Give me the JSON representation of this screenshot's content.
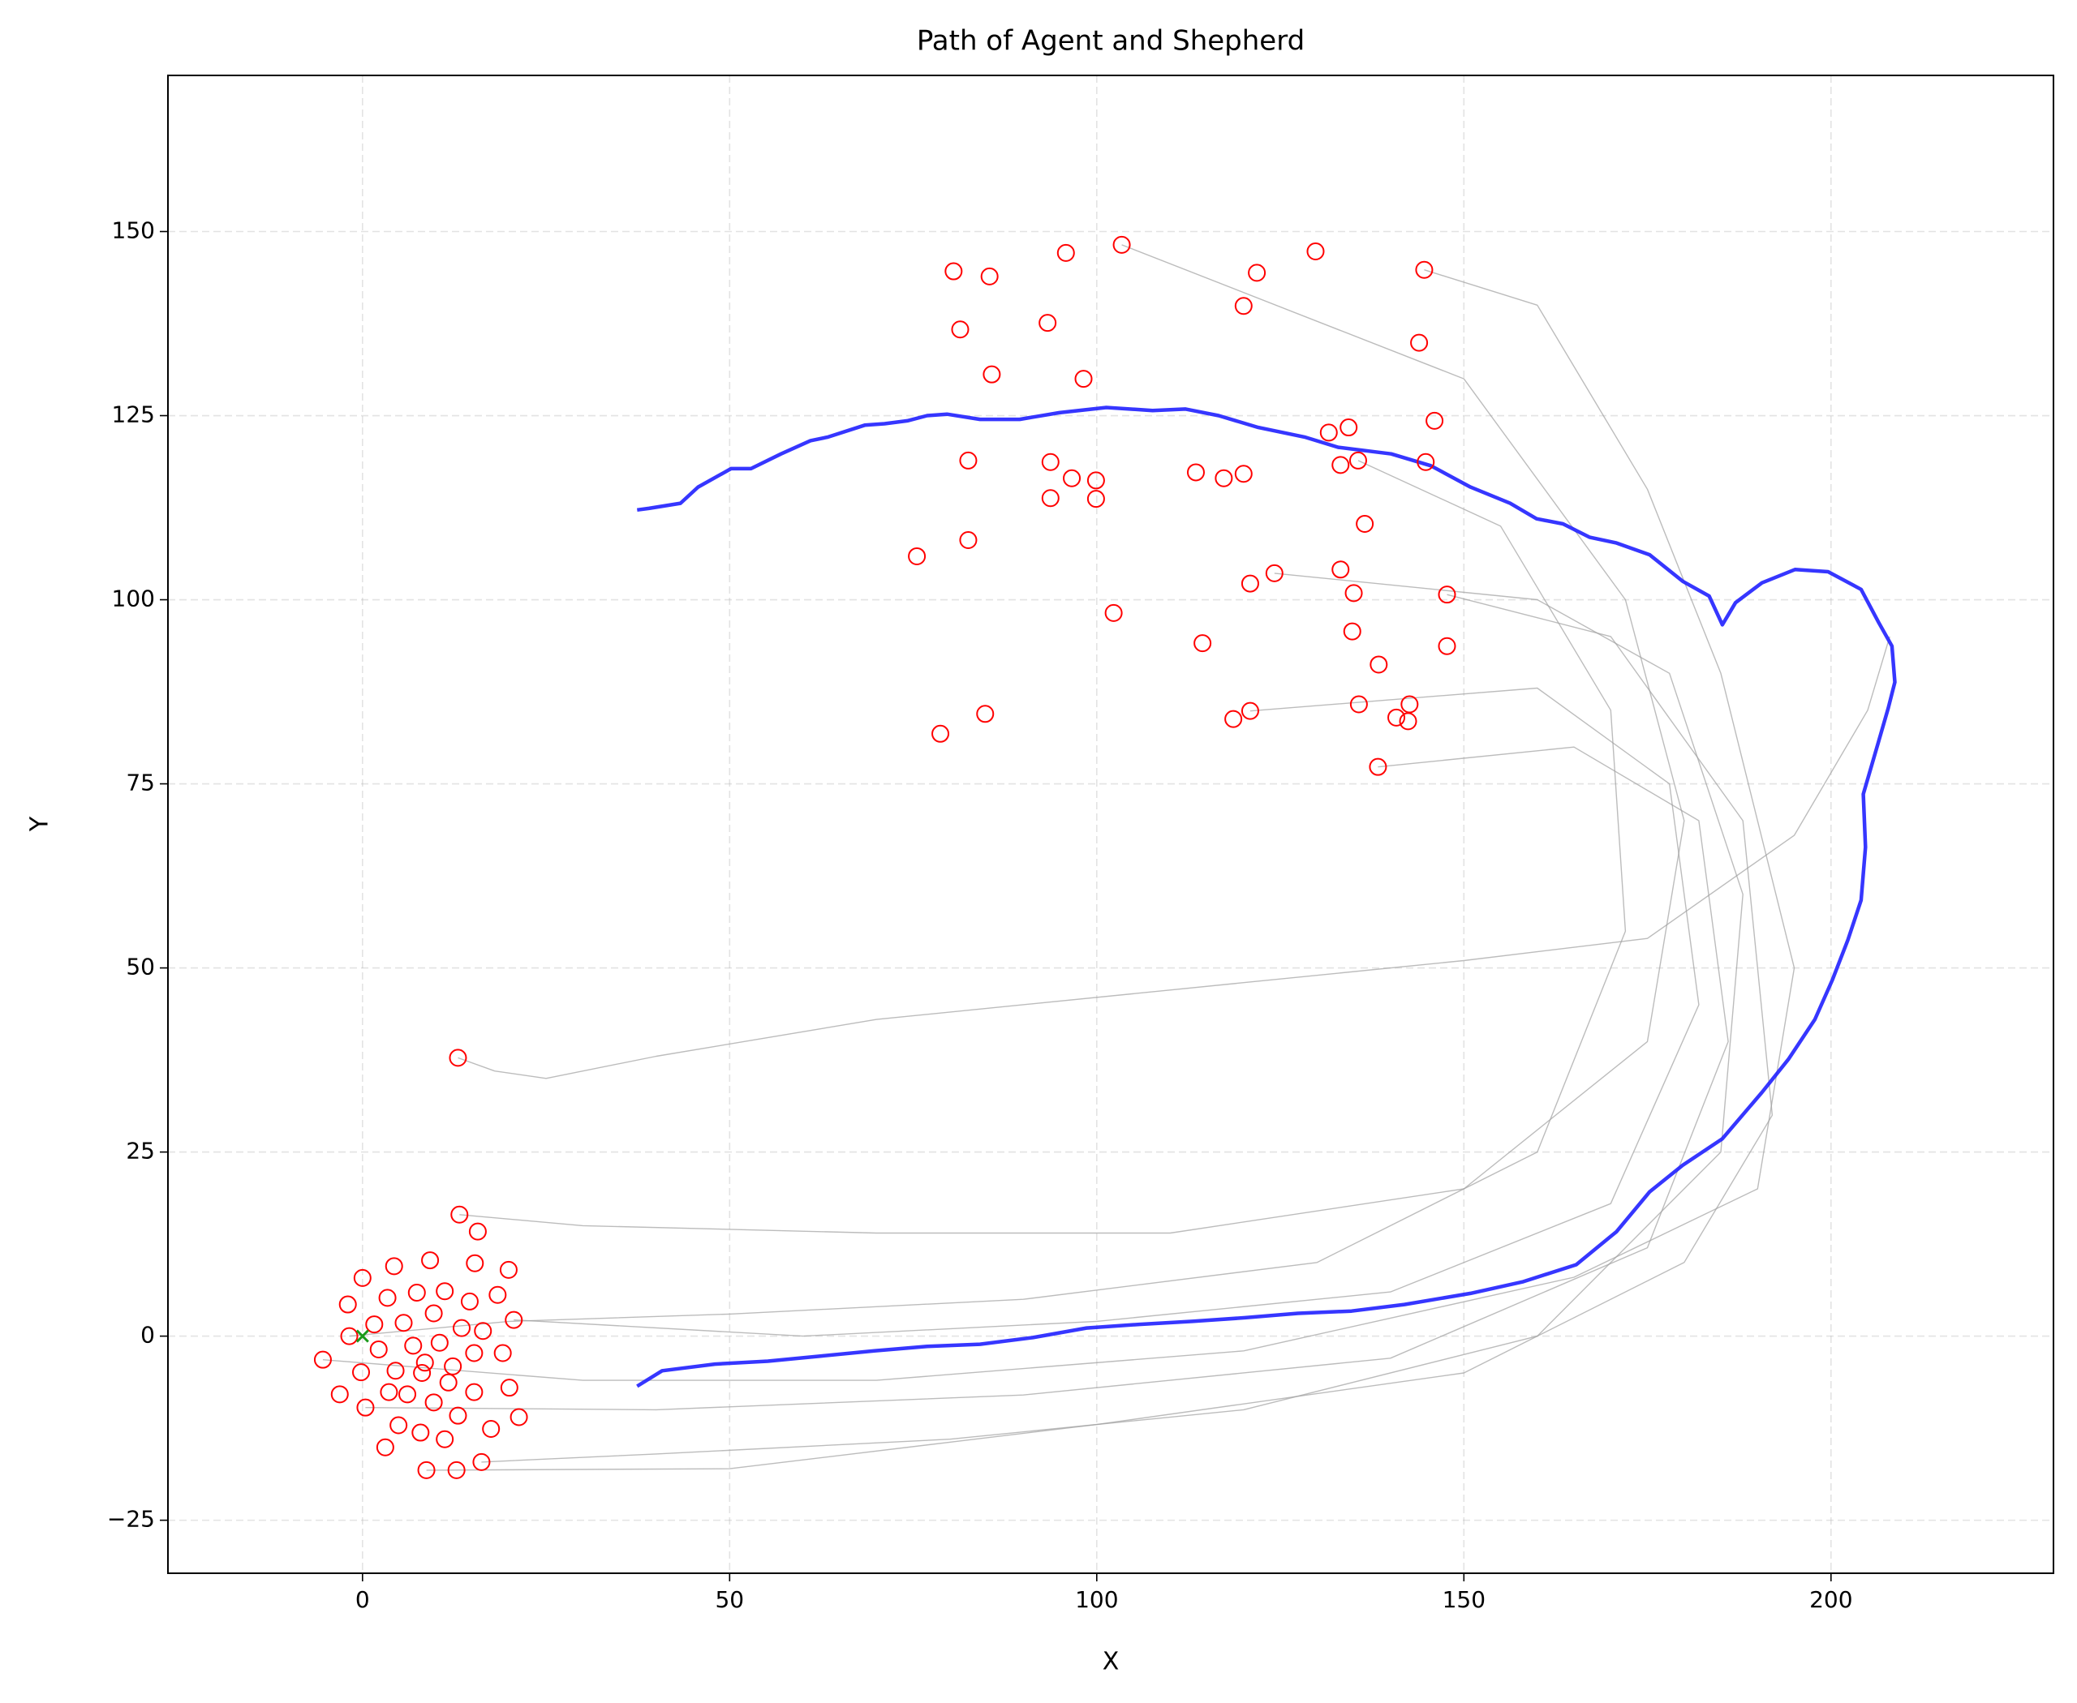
{
  "chart_data": {
    "type": "line",
    "title": "Path of Agent and Shepherd",
    "xlabel": "X",
    "ylabel": "Y",
    "xlim": [
      -26.5,
      230.3
    ],
    "ylim": [
      -32.2,
      171.2
    ],
    "xticks": [
      0,
      50,
      100,
      150,
      200
    ],
    "yticks": [
      {
        "value": -25,
        "label": "−25"
      },
      0,
      25,
      50,
      75,
      100,
      125,
      150
    ],
    "grid": true,
    "series": [
      {
        "color": "#a0a0a0",
        "x": [
          13,
          18,
          25,
          40,
          70,
          110,
          150,
          175,
          195,
          205,
          208
        ],
        "y": [
          37.8,
          36,
          35,
          38,
          43,
          47,
          51,
          54,
          68,
          85,
          95
        ]
      },
      {
        "color": "#a0a0a0",
        "x": [
          -1.8,
          20,
          50,
          90,
          130,
          160,
          172,
          170,
          155,
          135.6
        ],
        "y": [
          0,
          2,
          3,
          5,
          10,
          25,
          55,
          85,
          110,
          118.9
        ]
      },
      {
        "color": "#a0a0a0",
        "x": [
          13.2,
          30,
          70,
          110,
          150,
          175,
          180,
          172,
          150,
          103.4
        ],
        "y": [
          16.5,
          15,
          14,
          14,
          20,
          40,
          70,
          100,
          130,
          148.2
        ]
      },
      {
        "color": "#a0a0a0",
        "x": [
          16.2,
          40,
          80,
          120,
          160,
          185,
          188,
          178,
          160,
          124.2
        ],
        "y": [
          -17.1,
          -16,
          -14,
          -10,
          0,
          25,
          60,
          90,
          100,
          103.6
        ]
      },
      {
        "color": "#a0a0a0",
        "x": [
          20.6,
          60,
          100,
          140,
          170,
          182,
          178,
          160,
          120.9
        ],
        "y": [
          2.2,
          0,
          2,
          6,
          18,
          45,
          75,
          88,
          84.9
        ]
      },
      {
        "color": "#a0a0a0",
        "x": [
          -5.4,
          30,
          70,
          120,
          165,
          190,
          195,
          185,
          175,
          160,
          144.6
        ],
        "y": [
          -3.2,
          -6,
          -6,
          -2,
          8,
          20,
          50,
          90,
          115,
          140,
          144.8
        ]
      },
      {
        "color": "#a0a0a0",
        "x": [
          8.7,
          50,
          100,
          150,
          180,
          192,
          188,
          170,
          147.7
        ],
        "y": [
          -18.2,
          -18,
          -12,
          -5,
          10,
          30,
          70,
          95,
          100.7
        ]
      },
      {
        "color": "#a0a0a0",
        "x": [
          0.4,
          40,
          90,
          140,
          175,
          186,
          182,
          165,
          138.3
        ],
        "y": [
          -9.7,
          -10,
          -8,
          -3,
          12,
          40,
          70,
          80,
          77.3
        ]
      },
      {
        "color": "#2020ff",
        "width": 2.2,
        "x": [
          37.4,
          39,
          43.3,
          45.7,
          50.2,
          52.9,
          57,
          61,
          63.4,
          68.4,
          71.1,
          74.2,
          76.9,
          79.6,
          84.1,
          89.5,
          94.9,
          101.3,
          107.6,
          112.1,
          116.6,
          122,
          128.3,
          132.9,
          140.1,
          145.5,
          150.9,
          156.3,
          159.9,
          163.5,
          167.1,
          170.8,
          175.3,
          179.8,
          183.4,
          185.2,
          187,
          190.6,
          195.1,
          199.6,
          204.1,
          206.5,
          208.3,
          208.7,
          207.8,
          206.5,
          204.4,
          204.7,
          204.1,
          202.3,
          200.2,
          197.8,
          194.2,
          190.6,
          185.2,
          179.8,
          175.3,
          170.8,
          165.3,
          158.1,
          150.9,
          141.9,
          134.7,
          127.4,
          120.2,
          113,
          105.8,
          98.6,
          91.3,
          84.1,
          76.9,
          69.7,
          62.5,
          55.2,
          48,
          40.8,
          37.4
        ],
        "y": [
          112.2,
          112.4,
          113.1,
          115.3,
          117.8,
          117.8,
          119.8,
          121.6,
          122.1,
          123.7,
          123.9,
          124.3,
          125,
          125.2,
          124.5,
          124.5,
          125.4,
          126.1,
          125.7,
          125.9,
          125,
          123.4,
          122.1,
          120.7,
          119.8,
          118.2,
          115.3,
          113.1,
          111,
          110.3,
          108.5,
          107.7,
          106.1,
          102.5,
          100.5,
          96.6,
          99.6,
          102.3,
          104.1,
          103.8,
          101.4,
          96.9,
          93.7,
          88.8,
          85.3,
          80.8,
          73.6,
          66.4,
          59.2,
          53.8,
          48.4,
          43,
          37.6,
          33.1,
          26.8,
          23.2,
          19.6,
          14.2,
          9.7,
          7.4,
          5.8,
          4.3,
          3.4,
          3.1,
          2.5,
          2,
          1.6,
          1.1,
          -0.2,
          -1.1,
          -1.4,
          -2,
          -2.7,
          -3.4,
          -3.8,
          -4.7,
          -6.8
        ]
      },
      {
        "color": "#ff0000",
        "marker": "circle",
        "x": [
          13.2,
          15.7,
          0,
          4.3,
          9.2,
          15.3,
          19.9,
          -2,
          3.4,
          7.4,
          11.2,
          14.6,
          18.4,
          -1.8,
          1.6,
          5.6,
          9.7,
          13.5,
          16.4,
          20.6,
          -5.4,
          2.2,
          6.9,
          10.5,
          8.5,
          12.3,
          15.2,
          19.1,
          -3.1,
          -0.2,
          3.6,
          4.5,
          6.1,
          8.1,
          11.7,
          15.2,
          20,
          0.4,
          4.9,
          7.9,
          9.7,
          13,
          17.5,
          21.3,
          3.1,
          11.2,
          8.7,
          12.8,
          16.2,
          13,
          80.5,
          85.4,
          95.8,
          103.4,
          129.8,
          121.8,
          144.6,
          81.4,
          93.3,
          120,
          143.9,
          85.7,
          98.2,
          131.6,
          134.3,
          146,
          82.5,
          93.7,
          96.6,
          99.9,
          113.5,
          117.3,
          120,
          133.2,
          135.6,
          144.8,
          93.7,
          99.9,
          136.5,
          75.5,
          82.5,
          133.2,
          124.2,
          120.9,
          135,
          147.7,
          102.3,
          134.8,
          114.4,
          147.7,
          138.4,
          135.7,
          142.6,
          140.8,
          142.4,
          120.9,
          118.6,
          84.8,
          78.7,
          138.3
        ],
        "y": [
          16.5,
          14.2,
          7.9,
          9.5,
          10.3,
          9.9,
          9,
          4.3,
          5.2,
          5.9,
          6.1,
          4.7,
          5.6,
          0,
          1.6,
          1.8,
          3.1,
          1.1,
          0.7,
          2.2,
          -3.2,
          -1.8,
          -1.3,
          -0.9,
          -3.6,
          -4.1,
          -2.3,
          -2.3,
          -7.9,
          -4.9,
          -7.6,
          -4.7,
          -7.9,
          -5,
          -6.3,
          -7.6,
          -7,
          -9.7,
          -12.1,
          -13.1,
          -9,
          -10.8,
          -12.6,
          -11,
          -15.1,
          -14,
          -18.2,
          -18.2,
          -17.1,
          37.8,
          144.6,
          143.9,
          147.1,
          148.2,
          147.3,
          144.4,
          144.8,
          136.7,
          137.6,
          139.9,
          134.9,
          130.6,
          130,
          122.7,
          123.4,
          124.3,
          118.9,
          118.7,
          116.5,
          116.2,
          117.3,
          116.5,
          117.1,
          118.3,
          118.9,
          118.7,
          113.8,
          113.7,
          110.3,
          105.9,
          108.1,
          104.1,
          103.6,
          102.2,
          100.9,
          100.7,
          98.2,
          95.7,
          94.1,
          93.7,
          91.2,
          85.8,
          85.8,
          84,
          83.5,
          84.9,
          83.8,
          84.5,
          81.8,
          77.3
        ]
      },
      {
        "color": "#1a9a1a",
        "marker": "x",
        "x": [
          0
        ],
        "y": [
          0
        ]
      }
    ]
  }
}
